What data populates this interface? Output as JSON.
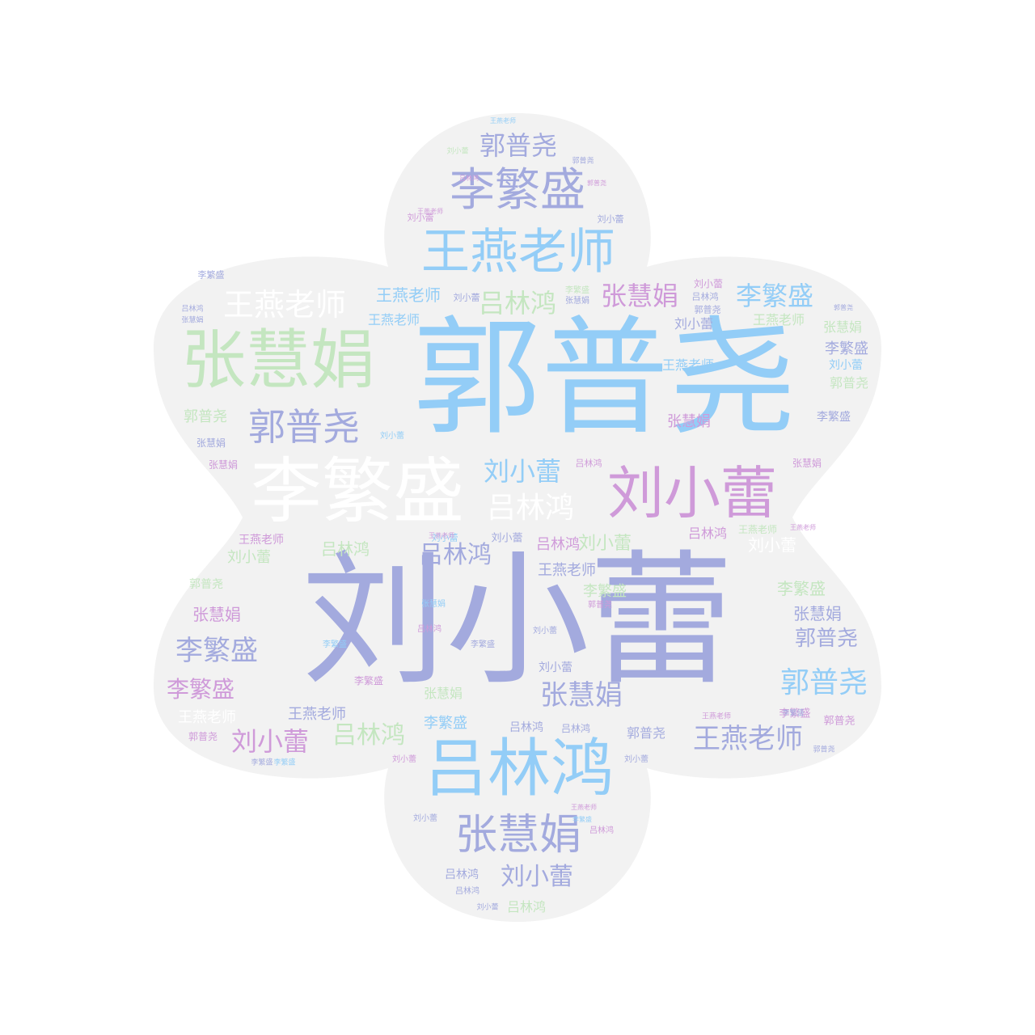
{
  "word_cloud": {
    "terms": [
      "刘小蕾",
      "郭普尧",
      "李繁盛",
      "张慧娟",
      "王燕老师",
      "吕林鸿"
    ],
    "palette": {
      "shape_fill": "#f2f2f2",
      "page_background": "#ffffff",
      "periwinkle": "#a3aade",
      "sky_blue": "#93cdf7",
      "mint": "#c4e6c0",
      "orchid": "#cf9ad9",
      "white": "#ffffff",
      "slate": "#9ea3d6"
    }
  }
}
